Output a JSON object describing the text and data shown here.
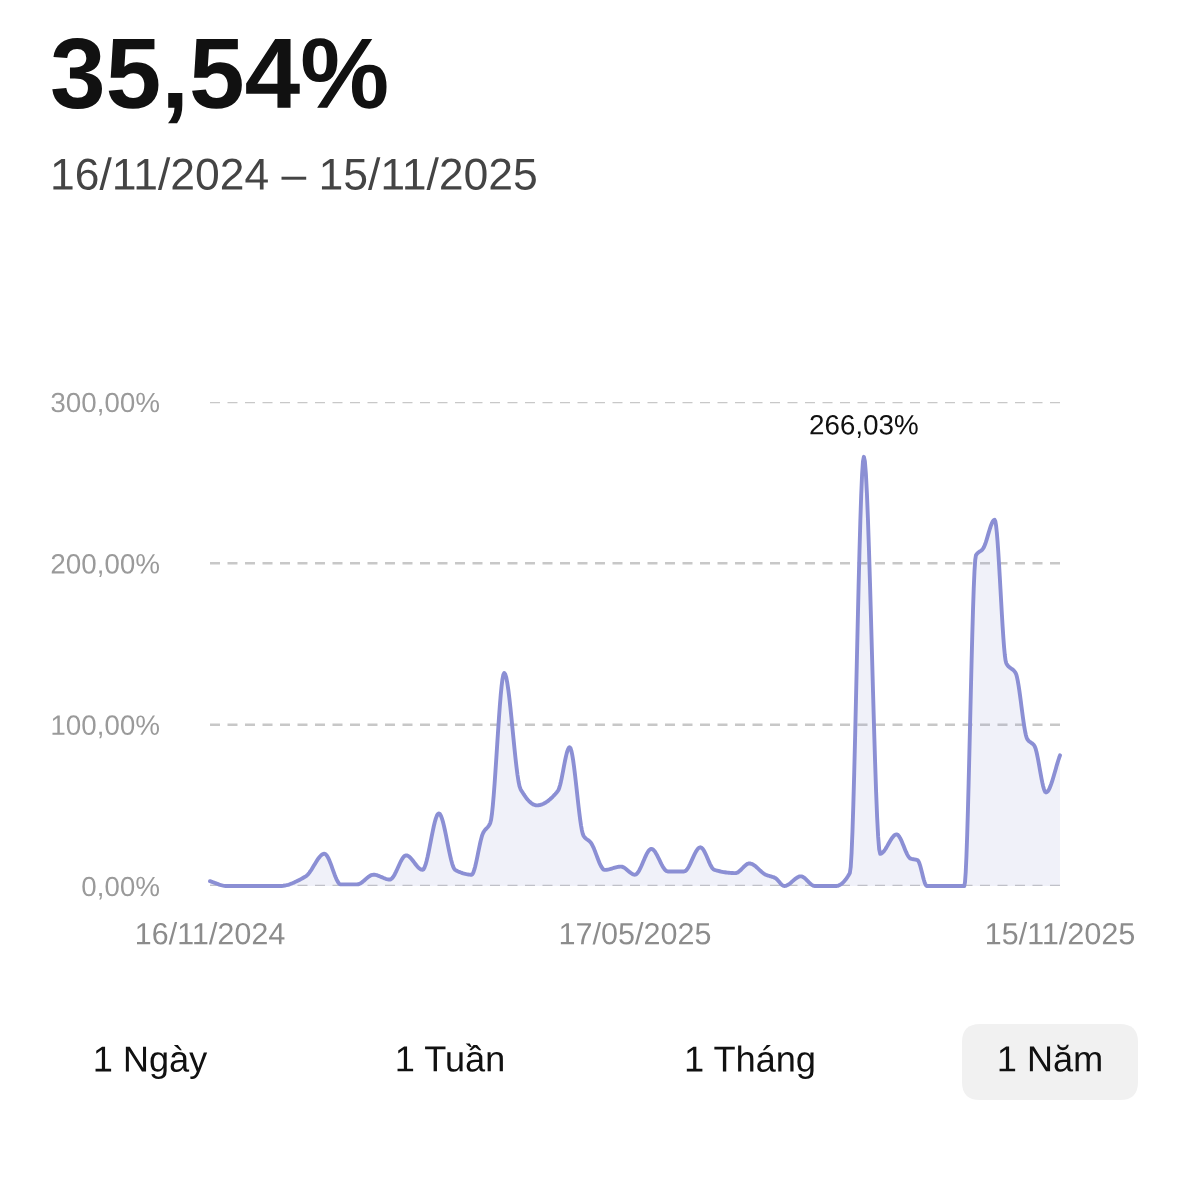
{
  "chart_data": {
    "type": "area",
    "title": "35,54%",
    "subtitle": "16/11/2024 – 15/11/2025",
    "x": [
      "2024-11-16",
      "2024-11-23",
      "2024-12-16",
      "2024-12-27",
      "2025-01-04",
      "2025-01-11",
      "2025-01-18",
      "2025-01-25",
      "2025-02-01",
      "2025-02-08",
      "2025-02-15",
      "2025-02-22",
      "2025-03-01",
      "2025-03-08",
      "2025-03-13",
      "2025-03-16",
      "2025-03-22",
      "2025-03-29",
      "2025-04-05",
      "2025-04-14",
      "2025-04-19",
      "2025-04-25",
      "2025-04-28",
      "2025-05-04",
      "2025-05-11",
      "2025-05-17",
      "2025-05-24",
      "2025-05-31",
      "2025-06-07",
      "2025-06-14",
      "2025-06-20",
      "2025-06-29",
      "2025-07-05",
      "2025-07-12",
      "2025-07-16",
      "2025-07-20",
      "2025-07-27",
      "2025-08-02",
      "2025-08-11",
      "2025-08-17",
      "2025-08-23",
      "2025-08-30",
      "2025-09-06",
      "2025-09-12",
      "2025-09-15",
      "2025-09-19",
      "2025-10-05",
      "2025-10-10",
      "2025-10-13",
      "2025-10-18",
      "2025-10-23",
      "2025-10-27",
      "2025-11-01",
      "2025-11-04",
      "2025-11-09",
      "2025-11-15"
    ],
    "series": [
      {
        "color": "#8b8fd4",
        "values": [
          3,
          0,
          0,
          6,
          20,
          1,
          1,
          7,
          4,
          19,
          10,
          45,
          10,
          7,
          33,
          39,
          132,
          60,
          50,
          59,
          86,
          31,
          27,
          10,
          12,
          7,
          23,
          9,
          9,
          24,
          10,
          8,
          14,
          7,
          5,
          0,
          6,
          0,
          0,
          8,
          266.03,
          20,
          32,
          17,
          16,
          0,
          0,
          205,
          209,
          227,
          138,
          132,
          91,
          87,
          58,
          81
        ]
      }
    ],
    "xlim": [
      "2024-11-16",
      "2025-11-15"
    ],
    "xticks": [
      {
        "value": "2024-11-16",
        "label": "16/11/2024"
      },
      {
        "value": "2025-05-17",
        "label": "17/05/2025"
      },
      {
        "value": "2025-11-15",
        "label": "15/11/2025"
      }
    ],
    "ylim": [
      0,
      300
    ],
    "yticks": [
      {
        "value": 0,
        "label": "0,00%"
      },
      {
        "value": 100,
        "label": "100,00%"
      },
      {
        "value": 200,
        "label": "200,00%"
      },
      {
        "value": 300,
        "label": "300,00%"
      }
    ],
    "grid": "y",
    "annotations": [
      {
        "text": "266,03%",
        "x": "2025-08-23",
        "y": 266.03
      },
      "1 Ngày",
      "1 Tuần",
      "1 Tháng",
      "1 Năm"
    ]
  }
}
